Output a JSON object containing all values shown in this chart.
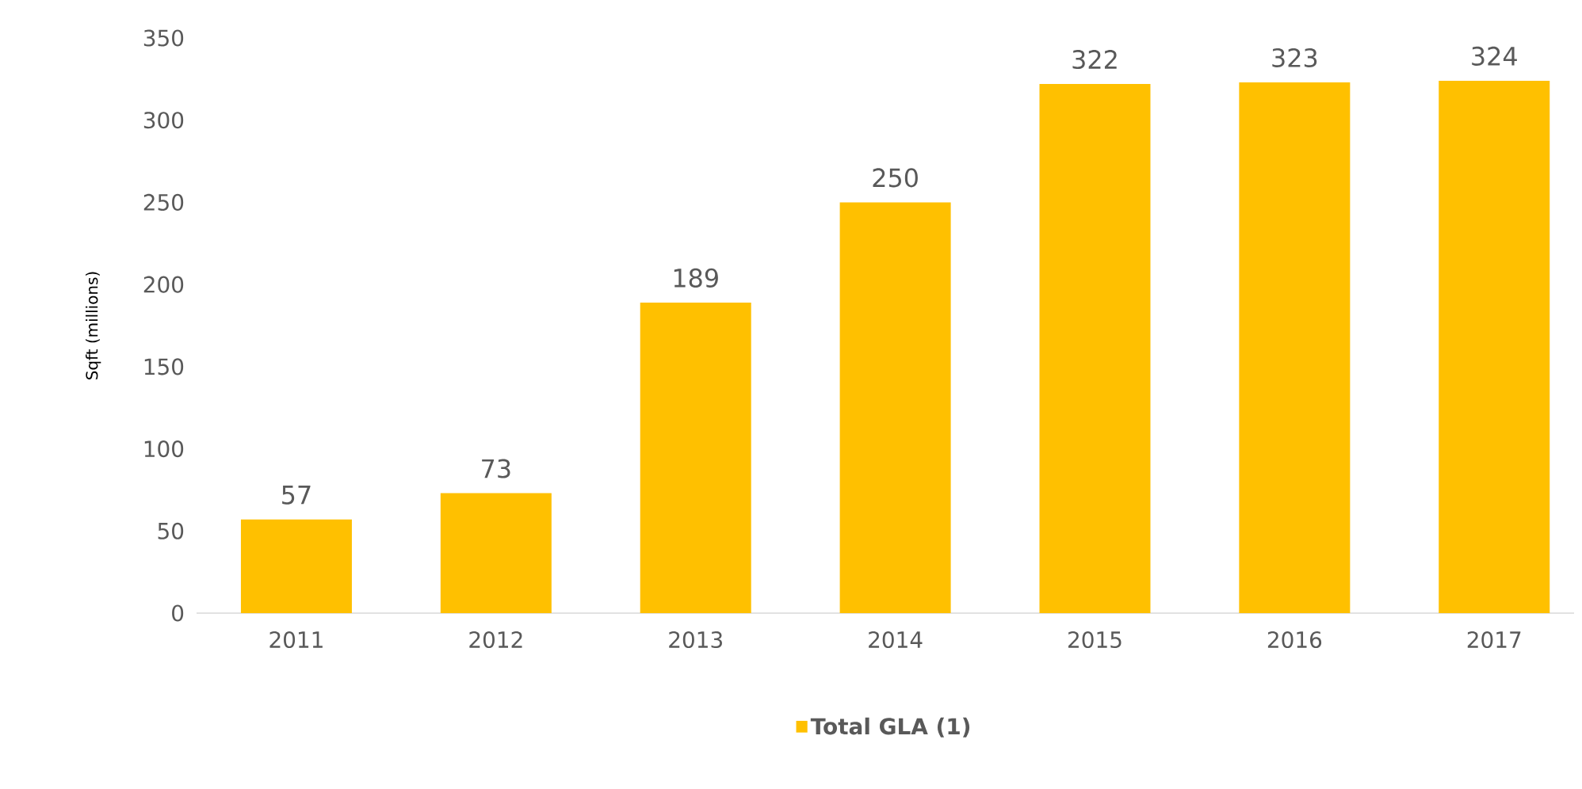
{
  "chart_data": {
    "type": "bar",
    "ylabel": "Sqft (millions)",
    "categories": [
      "2011",
      "2012",
      "2013",
      "2014",
      "2015",
      "2016",
      "2017"
    ],
    "series": [
      {
        "name": "Total GLA (1)",
        "color": "#ffc000",
        "values": [
          57,
          73,
          189,
          250,
          322,
          323,
          324
        ]
      }
    ],
    "ylim": [
      0,
      350
    ],
    "yticks": [
      0,
      50,
      100,
      150,
      200,
      250,
      300,
      350
    ],
    "data_labels": true,
    "legend": "bottom"
  }
}
